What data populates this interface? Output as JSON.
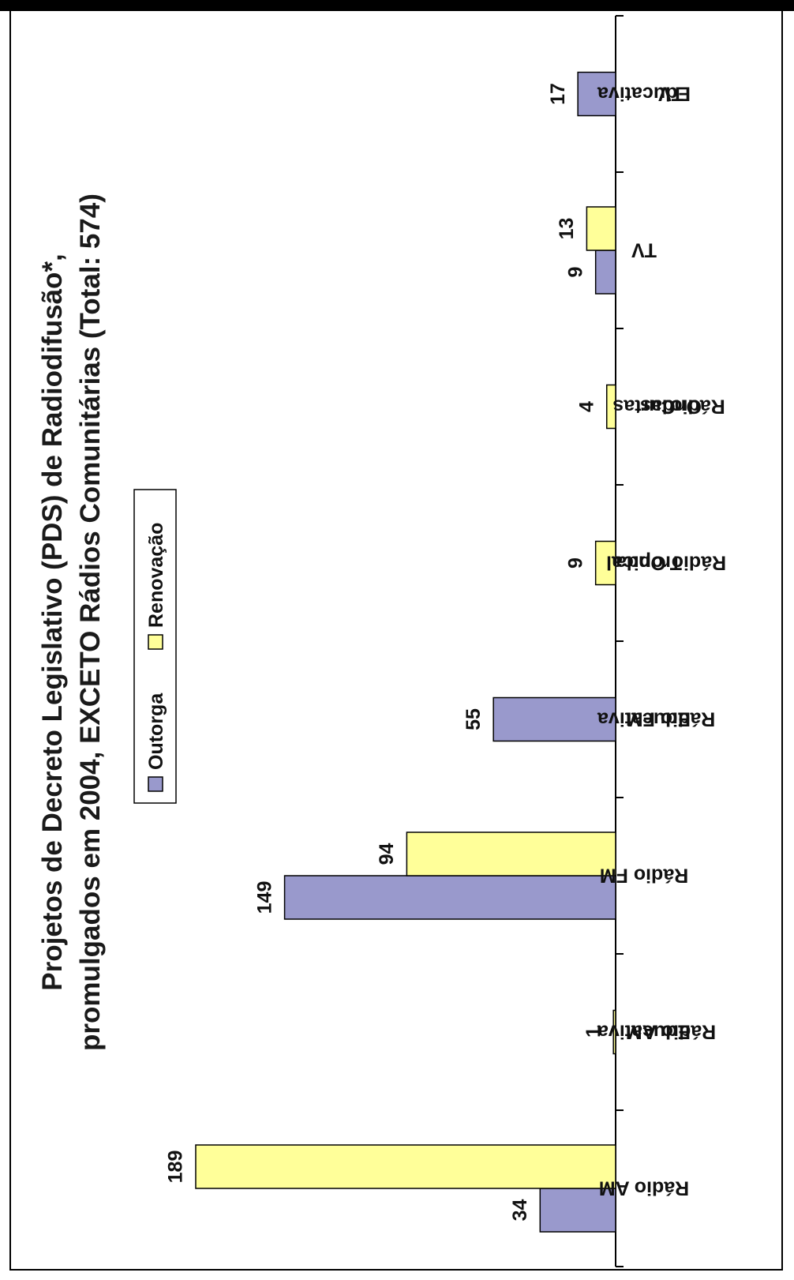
{
  "chart_data": {
    "type": "bar",
    "orientation": "rotated-180-then-vertical-bars",
    "title_line1": "Projetos de Decreto Legislativo (PDS) de Radiodifusão*,",
    "title_line2": "promulgados em 2004, EXCETO Rádios Comunitárias (Total: 574)",
    "categories": [
      [
        "Rádio AM"
      ],
      [
        "Rádio AM",
        "Educativa"
      ],
      [
        "Rádio FM"
      ],
      [
        "Rádio FM",
        "Educativa"
      ],
      [
        "Rádio Onda",
        "Tropical"
      ],
      [
        "Rádio",
        "Ondas",
        "Curtas"
      ],
      [
        "TV"
      ],
      [
        "TV",
        "Educativa"
      ]
    ],
    "series": [
      {
        "name": "Outorga",
        "color": "#9999cc",
        "values": [
          34,
          0,
          149,
          55,
          0,
          0,
          9,
          17
        ]
      },
      {
        "name": "Renovação",
        "color": "#ffff99",
        "values": [
          189,
          1,
          94,
          0,
          9,
          4,
          13,
          0
        ]
      }
    ],
    "legend_position": "top-center",
    "grid": false,
    "ylim": [
      0,
      200
    ]
  }
}
